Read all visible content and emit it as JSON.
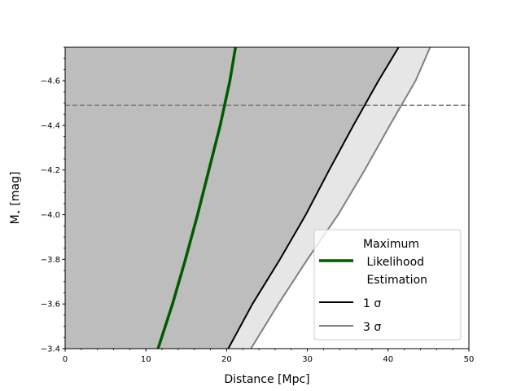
{
  "chart_data": {
    "type": "line",
    "xlabel": "Distance [Mpc]",
    "ylabel": "M",
    "ylabel_sub": "⋆",
    "ylabel_unit": " [mag]",
    "xlim": [
      0,
      50
    ],
    "ylim": [
      -3.4,
      -4.75
    ],
    "y_inverted": true,
    "grid": false,
    "x_ticks": [
      0,
      10,
      20,
      30,
      40,
      50
    ],
    "x_tick_labels": [
      "0",
      "10",
      "20",
      "30",
      "40",
      "50"
    ],
    "y_ticks": [
      -3.4,
      -3.6,
      -3.8,
      -4.0,
      -4.2,
      -4.4,
      -4.6
    ],
    "y_tick_labels": [
      "−3.4",
      "−3.6",
      "−3.8",
      "−4.0",
      "−4.2",
      "−4.4",
      "−4.6"
    ],
    "horizontal_reference": {
      "y": -4.49,
      "color": "#808080",
      "style": "dashed"
    },
    "series": [
      {
        "name": "Maximum\n Likelihood\n Estimation",
        "color": "#005a00",
        "x": [
          11.5,
          13.3,
          14.9,
          16.4,
          17.8,
          19.2,
          20.4,
          21.1
        ],
        "y": [
          -3.4,
          -3.6,
          -3.8,
          -4.0,
          -4.2,
          -4.4,
          -4.6,
          -4.75
        ]
      },
      {
        "name": "1 σ",
        "color": "#000000",
        "x": [
          20.2,
          23.2,
          26.6,
          29.8,
          32.7,
          35.7,
          38.8,
          41.3
        ],
        "y": [
          -3.4,
          -3.6,
          -3.8,
          -4.0,
          -4.2,
          -4.4,
          -4.6,
          -4.75
        ]
      },
      {
        "name": "3 σ",
        "color": "#808080",
        "x": [
          23.0,
          26.4,
          30.0,
          33.8,
          37.1,
          40.2,
          43.4,
          45.2
        ],
        "y": [
          -3.4,
          -3.6,
          -3.8,
          -4.0,
          -4.2,
          -4.4,
          -4.6,
          -4.75
        ]
      }
    ],
    "fills": [
      {
        "between": "left-edge and 1 σ",
        "color": "#bdbdbd"
      },
      {
        "between": "1 σ and 3 σ",
        "color": "#e6e6e6"
      }
    ],
    "legend_position": "lower right",
    "legend_labels": [
      "Maximum",
      " Likelihood",
      " Estimation",
      "1 σ",
      "3 σ"
    ]
  }
}
